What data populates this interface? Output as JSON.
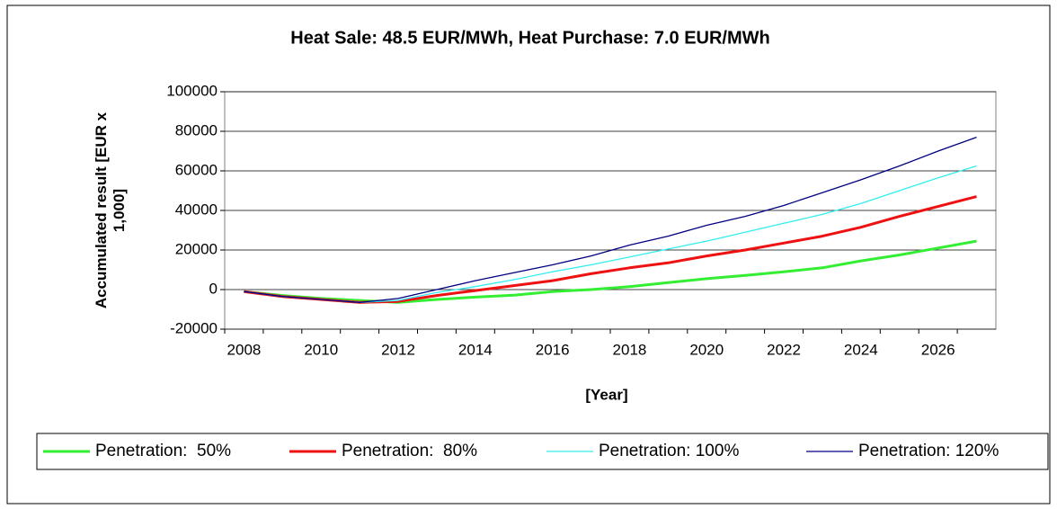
{
  "chart_data": {
    "type": "line",
    "title": "Heat Sale: 48.5 EUR/MWh, Heat Purchase: 7.0 EUR/MWh",
    "x_label": "[Year]",
    "y_label": "Accumulated result [EUR x 1,000]",
    "categories": [
      "2008",
      null,
      "2010",
      null,
      "2012",
      null,
      "2014",
      null,
      "2016",
      null,
      "2018",
      null,
      "2020",
      null,
      "2022",
      null,
      "2024",
      null,
      "2026",
      null
    ],
    "series": [
      {
        "name": "Penetration:  50%",
        "color": "#33ee33",
        "width": 3,
        "values": [
          -1000,
          -3000,
          -4500,
          -5500,
          -6500,
          -5000,
          -3800,
          -2800,
          -1000,
          0,
          1500,
          3500,
          5500,
          7200,
          9000,
          11000,
          14500,
          17500,
          21000,
          24500
        ]
      },
      {
        "name": "Penetration:  80%",
        "color": "#ee1111",
        "width": 3,
        "values": [
          -1000,
          -3500,
          -5000,
          -6500,
          -6000,
          -3000,
          -500,
          2000,
          4500,
          8000,
          11000,
          13500,
          17000,
          20000,
          23500,
          27000,
          31500,
          37000,
          42000,
          47000
        ]
      },
      {
        "name": "Penetration: 100%",
        "color": "#33eeee",
        "width": 1.3,
        "values": [
          -1000,
          -3500,
          -5000,
          -6500,
          -5500,
          -1500,
          1500,
          5000,
          9000,
          12500,
          16500,
          20500,
          24500,
          29000,
          33500,
          38000,
          43500,
          50000,
          56500,
          62500
        ]
      },
      {
        "name": "Penetration: 120%",
        "color": "#000080",
        "width": 1.3,
        "values": [
          -1000,
          -3500,
          -5000,
          -6500,
          -4500,
          0,
          4500,
          8500,
          12500,
          17000,
          22500,
          27000,
          32500,
          37000,
          42500,
          49000,
          55500,
          62500,
          70000,
          77000
        ]
      }
    ],
    "ylim": [
      -20000,
      100000
    ],
    "yticks": [
      -20000,
      0,
      20000,
      40000,
      60000,
      80000,
      100000
    ],
    "grid": true,
    "legend": "bottom"
  }
}
